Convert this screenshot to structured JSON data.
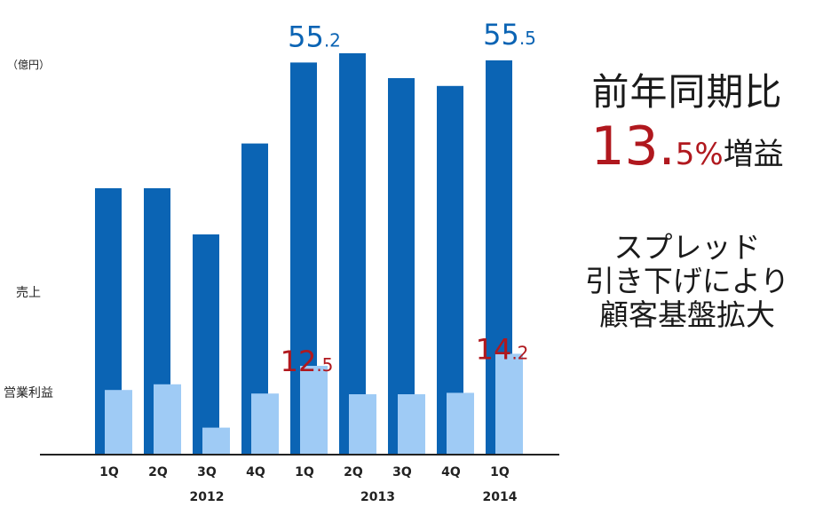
{
  "chart_data": {
    "type": "bar",
    "unit_label": "（億円）",
    "categories": [
      "1Q",
      "2Q",
      "3Q",
      "4Q",
      "1Q",
      "2Q",
      "3Q",
      "4Q",
      "1Q"
    ],
    "year_labels": [
      {
        "label": "2012",
        "at": 2
      },
      {
        "label": "2013",
        "at": 5.5
      },
      {
        "label": "2014",
        "at": 8
      }
    ],
    "series": [
      {
        "name": "売上",
        "color": "#0b64b4",
        "values": [
          37.5,
          37.5,
          31.0,
          43.8,
          55.2,
          56.5,
          53.0,
          51.9,
          55.5
        ]
      },
      {
        "name": "営業利益",
        "color": "#9fcbf5",
        "values": [
          9.1,
          9.9,
          3.8,
          8.6,
          12.5,
          8.5,
          8.5,
          8.7,
          14.2
        ]
      }
    ],
    "annotations": [
      {
        "series": 0,
        "index": 4,
        "int": "55",
        "dec": "2"
      },
      {
        "series": 0,
        "index": 8,
        "int": "55",
        "dec": "5"
      },
      {
        "series": 1,
        "index": 4,
        "int": "12",
        "dec": "5"
      },
      {
        "series": 1,
        "index": 8,
        "int": "14",
        "dec": "2"
      }
    ],
    "colors": {
      "sales_label": "#0b64b4",
      "profit_label": "#b0181e"
    }
  },
  "side_panel": {
    "headline": "前年同期比",
    "growth_number": "13.",
    "growth_suffix": "5%",
    "growth_word": "増益",
    "note_lines": [
      "スプレッド",
      "引き下げにより",
      "顧客基盤拡大"
    ]
  }
}
